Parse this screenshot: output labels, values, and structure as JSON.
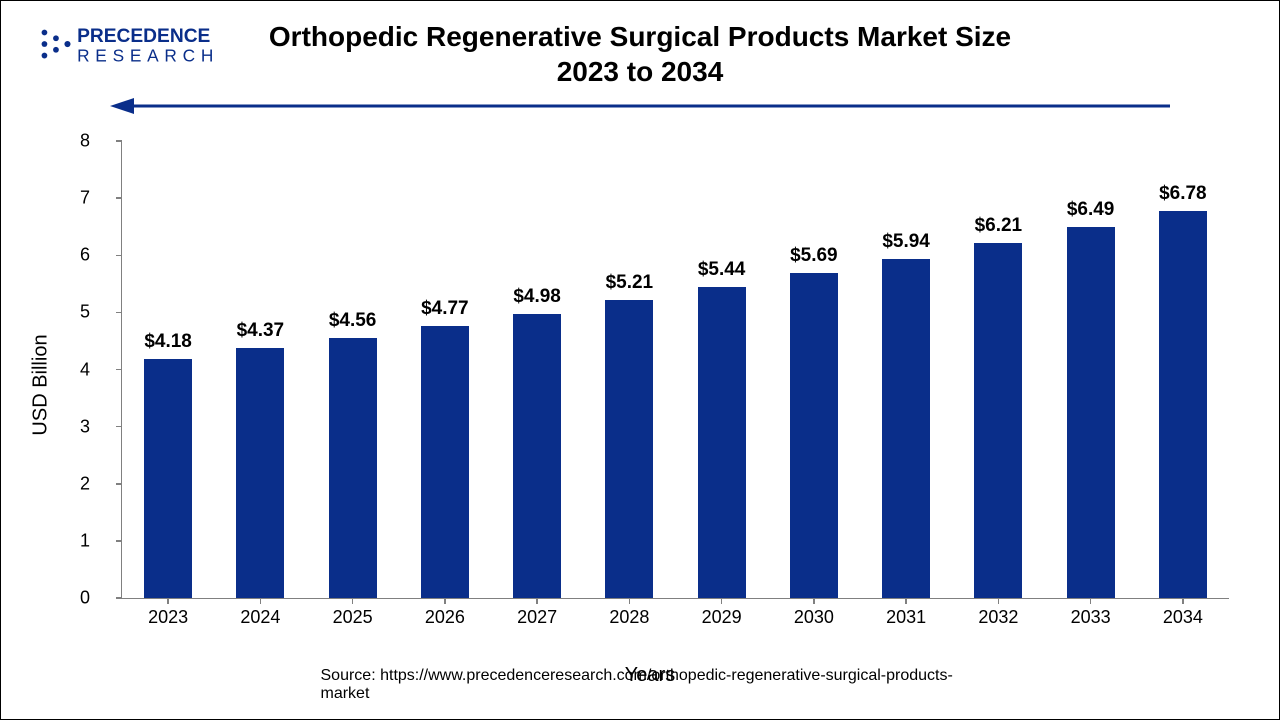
{
  "logo": {
    "brand_top": "PRECEDENCE",
    "brand_bottom": "RESEARCH",
    "accent_color": "#0a2e8a",
    "text_color": "#0a2e8a"
  },
  "chart": {
    "type": "bar",
    "title_line1": "Orthopedic Regenerative Surgical Products Market Size",
    "title_line2": "2023 to 2034",
    "title_fontsize": 28,
    "categories": [
      "2023",
      "2024",
      "2025",
      "2026",
      "2027",
      "2028",
      "2029",
      "2030",
      "2031",
      "2032",
      "2033",
      "2034"
    ],
    "values": [
      4.18,
      4.37,
      4.56,
      4.77,
      4.98,
      5.21,
      5.44,
      5.69,
      5.94,
      6.21,
      6.49,
      6.78
    ],
    "value_labels": [
      "$4.18",
      "$4.37",
      "$4.56",
      "$4.77",
      "$4.98",
      "$5.21",
      "$5.44",
      "$5.69",
      "$5.94",
      "$6.21",
      "$6.49",
      "$6.78"
    ],
    "bar_color": "#0a2e8a",
    "ylabel": "USD Billion",
    "xlabel": "Years",
    "label_fontsize": 20,
    "tick_fontsize": 18,
    "ylim": [
      0,
      8
    ],
    "ytick_step": 1,
    "bar_width_ratio": 0.52,
    "axis_color": "#808080",
    "background_color": "#ffffff",
    "grid": false,
    "arrow_color": "#0a2e8a"
  },
  "source": {
    "prefix": "Source: ",
    "url": "https://www.precedenceresearch.com/orthopedic-regenerative-surgical-products-market"
  }
}
